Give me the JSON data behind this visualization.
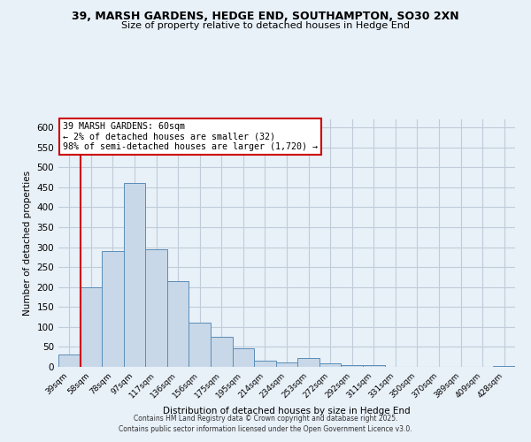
{
  "title_line1": "39, MARSH GARDENS, HEDGE END, SOUTHAMPTON, SO30 2XN",
  "title_line2": "Size of property relative to detached houses in Hedge End",
  "xlabel": "Distribution of detached houses by size in Hedge End",
  "ylabel": "Number of detached properties",
  "bin_labels": [
    "39sqm",
    "58sqm",
    "78sqm",
    "97sqm",
    "117sqm",
    "136sqm",
    "156sqm",
    "175sqm",
    "195sqm",
    "214sqm",
    "234sqm",
    "253sqm",
    "272sqm",
    "292sqm",
    "311sqm",
    "331sqm",
    "350sqm",
    "370sqm",
    "389sqm",
    "409sqm",
    "428sqm"
  ],
  "bar_values": [
    30,
    200,
    290,
    460,
    295,
    215,
    110,
    75,
    47,
    15,
    12,
    22,
    8,
    4,
    5,
    1,
    0,
    0,
    0,
    0,
    2
  ],
  "bar_color": "#c8d8e8",
  "bar_edge_color": "#5b8db8",
  "vline_x_index": 1,
  "vline_color": "#cc0000",
  "ylim": [
    0,
    620
  ],
  "yticks": [
    0,
    50,
    100,
    150,
    200,
    250,
    300,
    350,
    400,
    450,
    500,
    550,
    600
  ],
  "annotation_text": "39 MARSH GARDENS: 60sqm\n← 2% of detached houses are smaller (32)\n98% of semi-detached houses are larger (1,720) →",
  "annotation_box_color": "#ffffff",
  "annotation_box_edge": "#cc0000",
  "footer_line1": "Contains HM Land Registry data © Crown copyright and database right 2025.",
  "footer_line2": "Contains public sector information licensed under the Open Government Licence v3.0.",
  "bg_color": "#e8f0f8",
  "plot_bg_color": "#e8f0f8",
  "grid_color": "#c0ccd8"
}
